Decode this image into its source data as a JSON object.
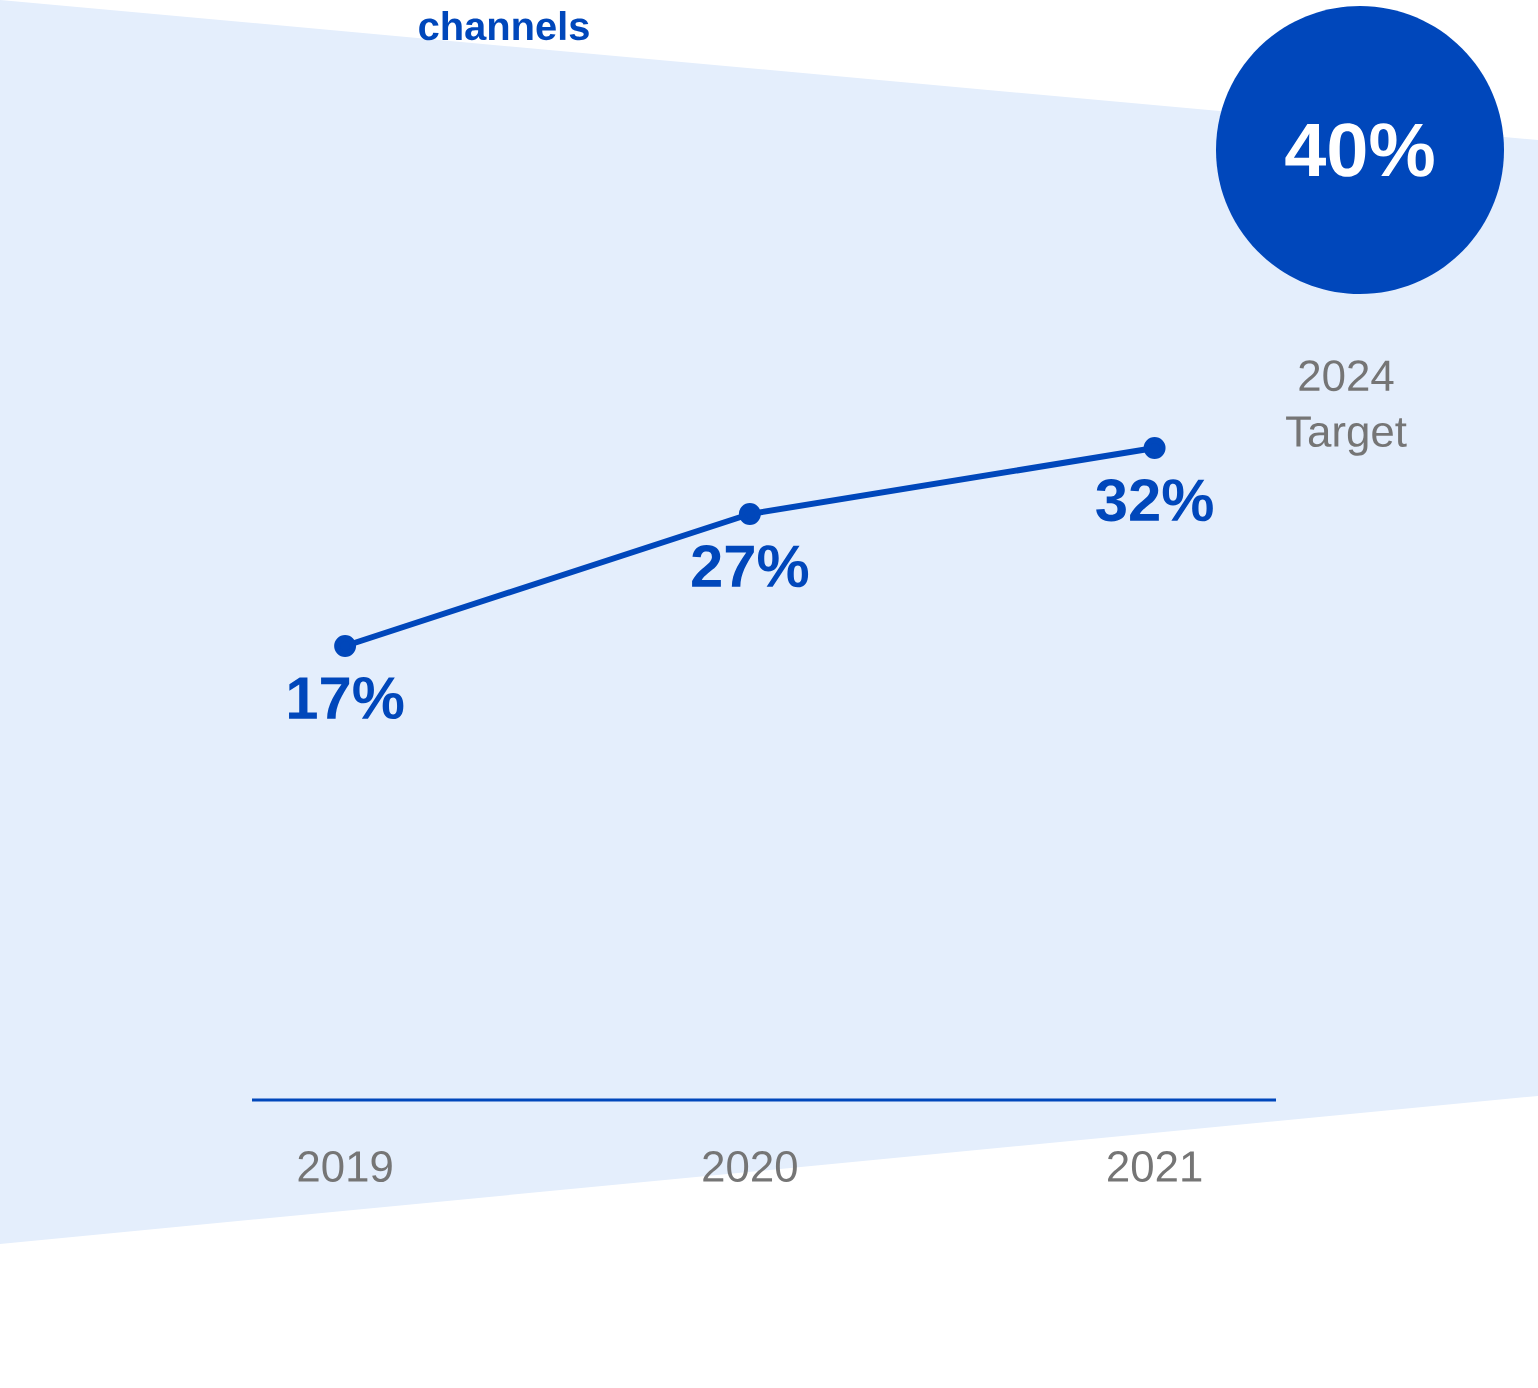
{
  "chart_data": {
    "type": "line",
    "title": "channels",
    "categories": [
      "2019",
      "2020",
      "2021"
    ],
    "series": [
      {
        "color": "#0047bb",
        "values": [
          17,
          27,
          32
        ],
        "value_labels": [
          "17%",
          "27%",
          "32%"
        ]
      }
    ],
    "marker": "circle",
    "line_style": "solid",
    "annotations": [
      "40%",
      "2024 Target"
    ]
  }
}
